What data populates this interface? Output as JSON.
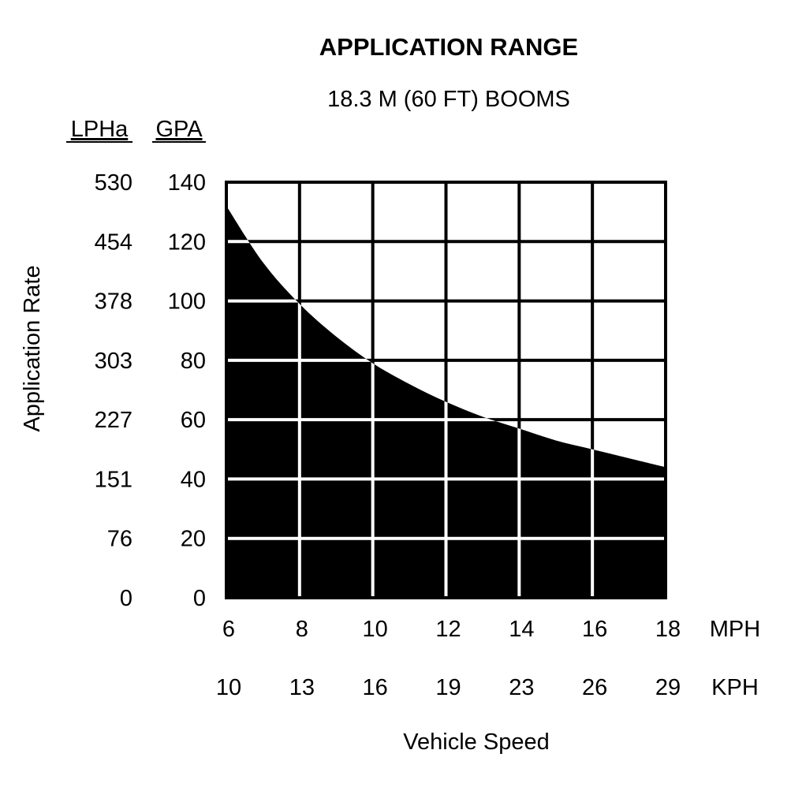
{
  "chart_data": {
    "type": "area",
    "title": "APPLICATION RANGE",
    "subtitle": "18.3 M (60 FT) BOOMS",
    "ylabel": "Application Rate",
    "xlabel": "Vehicle Speed",
    "y_axes": [
      {
        "header": "LPHa",
        "ticks": [
          "530",
          "454",
          "378",
          "303",
          "227",
          "151",
          "76",
          "0"
        ]
      },
      {
        "header": "GPA",
        "ticks": [
          "140",
          "120",
          "100",
          "80",
          "60",
          "40",
          "20",
          "0"
        ]
      }
    ],
    "x_axes": [
      {
        "unit": "MPH",
        "ticks": [
          "6",
          "8",
          "10",
          "12",
          "14",
          "16",
          "18"
        ]
      },
      {
        "unit": "KPH",
        "ticks": [
          "10",
          "13",
          "16",
          "19",
          "23",
          "26",
          "29"
        ]
      }
    ],
    "xlim": [
      6,
      18
    ],
    "ylim": [
      0,
      140
    ],
    "grid": true,
    "fill_color": "#000000",
    "grid_color_on_fill": "#ffffff",
    "grid_color_on_blank": "#000000",
    "series": [
      {
        "x": [
          6,
          7,
          8,
          9,
          10,
          11,
          12,
          13,
          14,
          15,
          16,
          17,
          18
        ],
        "values": [
          132,
          113,
          99,
          88,
          79,
          72,
          66,
          61,
          57,
          53,
          50,
          47,
          44
        ]
      }
    ]
  }
}
